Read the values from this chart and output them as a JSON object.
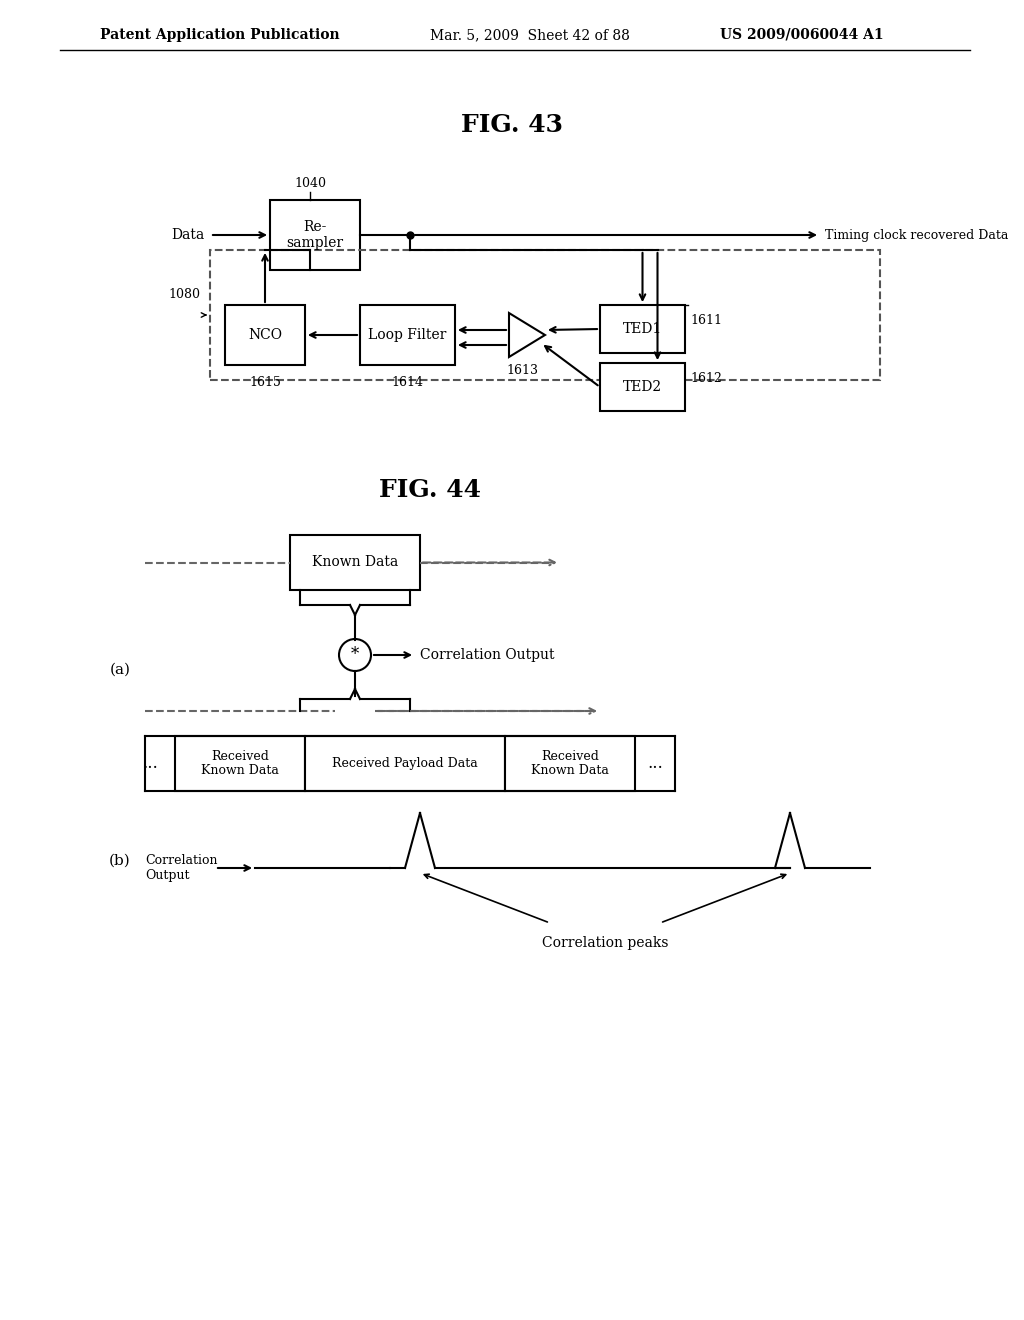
{
  "fig_title1": "FIG. 43",
  "fig_title2": "FIG. 44",
  "header_left": "Patent Application Publication",
  "header_mid": "Mar. 5, 2009  Sheet 42 of 88",
  "header_right": "US 2009/0060044 A1",
  "bg_color": "#ffffff",
  "text_color": "#000000",
  "box_color": "#ffffff",
  "box_edge": "#000000",
  "dashed_color": "#555555"
}
